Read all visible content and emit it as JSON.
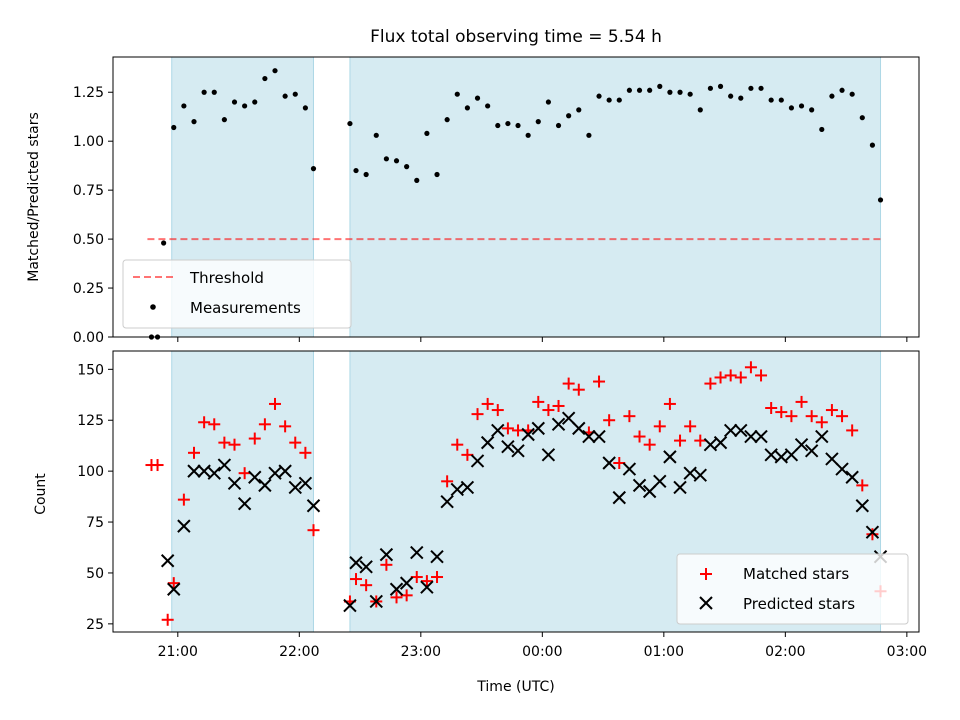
{
  "chart_data": [
    {
      "type": "scatter",
      "title": "Flux total observing time = 5.54 h",
      "ylabel": "Matched/Predicted stars",
      "xlim": [
        "20:28",
        "03:06"
      ],
      "ylim": [
        0,
        1.43
      ],
      "y_ticks": [
        "0.00",
        "0.25",
        "0.50",
        "0.75",
        "1.00",
        "1.25"
      ],
      "shaded_intervals": [
        [
          "20:57",
          "22:07"
        ],
        [
          "22:25",
          "02:47"
        ]
      ],
      "shade_color": "#add8e6",
      "legend_position": "lower-left",
      "series": [
        {
          "name": "Threshold",
          "style": "dashed-line",
          "color": "#ff0000",
          "x_range": [
            "20:45",
            "02:47"
          ],
          "y": 0.5
        },
        {
          "name": "Measurements",
          "style": "dot",
          "color": "#000000",
          "points": [
            [
              "20:47",
              0.0
            ],
            [
              "20:50",
              0.0
            ],
            [
              "20:53",
              0.48
            ],
            [
              "20:58",
              1.07
            ],
            [
              "21:03",
              1.18
            ],
            [
              "21:08",
              1.1
            ],
            [
              "21:13",
              1.25
            ],
            [
              "21:18",
              1.25
            ],
            [
              "21:23",
              1.11
            ],
            [
              "21:28",
              1.2
            ],
            [
              "21:33",
              1.18
            ],
            [
              "21:38",
              1.2
            ],
            [
              "21:43",
              1.32
            ],
            [
              "21:48",
              1.36
            ],
            [
              "21:53",
              1.23
            ],
            [
              "21:58",
              1.24
            ],
            [
              "22:03",
              1.17
            ],
            [
              "22:07",
              0.86
            ],
            [
              "22:25",
              1.09
            ],
            [
              "22:28",
              0.85
            ],
            [
              "22:33",
              0.83
            ],
            [
              "22:38",
              1.03
            ],
            [
              "22:43",
              0.91
            ],
            [
              "22:48",
              0.9
            ],
            [
              "22:53",
              0.87
            ],
            [
              "22:58",
              0.8
            ],
            [
              "23:03",
              1.04
            ],
            [
              "23:08",
              0.83
            ],
            [
              "23:13",
              1.11
            ],
            [
              "23:18",
              1.24
            ],
            [
              "23:23",
              1.17
            ],
            [
              "23:28",
              1.22
            ],
            [
              "23:33",
              1.18
            ],
            [
              "23:38",
              1.08
            ],
            [
              "23:43",
              1.09
            ],
            [
              "23:48",
              1.08
            ],
            [
              "23:53",
              1.03
            ],
            [
              "23:58",
              1.1
            ],
            [
              "00:03",
              1.2
            ],
            [
              "00:08",
              1.08
            ],
            [
              "00:13",
              1.13
            ],
            [
              "00:18",
              1.16
            ],
            [
              "00:23",
              1.03
            ],
            [
              "00:28",
              1.23
            ],
            [
              "00:33",
              1.21
            ],
            [
              "00:38",
              1.21
            ],
            [
              "00:43",
              1.26
            ],
            [
              "00:48",
              1.26
            ],
            [
              "00:53",
              1.26
            ],
            [
              "00:58",
              1.28
            ],
            [
              "01:03",
              1.25
            ],
            [
              "01:08",
              1.25
            ],
            [
              "01:13",
              1.24
            ],
            [
              "01:18",
              1.16
            ],
            [
              "01:23",
              1.27
            ],
            [
              "01:28",
              1.28
            ],
            [
              "01:33",
              1.23
            ],
            [
              "01:38",
              1.22
            ],
            [
              "01:43",
              1.27
            ],
            [
              "01:48",
              1.27
            ],
            [
              "01:53",
              1.21
            ],
            [
              "01:58",
              1.21
            ],
            [
              "02:03",
              1.17
            ],
            [
              "02:08",
              1.18
            ],
            [
              "02:13",
              1.16
            ],
            [
              "02:18",
              1.06
            ],
            [
              "02:23",
              1.23
            ],
            [
              "02:28",
              1.26
            ],
            [
              "02:33",
              1.24
            ],
            [
              "02:38",
              1.12
            ],
            [
              "02:43",
              0.98
            ],
            [
              "02:47",
              0.7
            ]
          ]
        }
      ]
    },
    {
      "type": "scatter",
      "ylabel": "Count",
      "xlabel": "Time (UTC)",
      "xlim": [
        "20:28",
        "03:06"
      ],
      "ylim": [
        21,
        159
      ],
      "x_ticks": [
        "21:00",
        "22:00",
        "23:00",
        "00:00",
        "01:00",
        "02:00",
        "03:00"
      ],
      "y_ticks": [
        "25",
        "50",
        "75",
        "100",
        "125",
        "150"
      ],
      "shaded_intervals": [
        [
          "20:57",
          "22:07"
        ],
        [
          "22:25",
          "02:47"
        ]
      ],
      "shade_color": "#add8e6",
      "legend_position": "lower-right",
      "series": [
        {
          "name": "Matched stars",
          "marker": "+",
          "color": "#ff0000",
          "points": [
            [
              "20:47",
              103
            ],
            [
              "20:50",
              103
            ],
            [
              "20:55",
              27
            ],
            [
              "20:58",
              45
            ],
            [
              "21:03",
              86
            ],
            [
              "21:08",
              109
            ],
            [
              "21:13",
              124
            ],
            [
              "21:18",
              123
            ],
            [
              "21:23",
              114
            ],
            [
              "21:28",
              113
            ],
            [
              "21:33",
              99
            ],
            [
              "21:38",
              116
            ],
            [
              "21:43",
              123
            ],
            [
              "21:48",
              133
            ],
            [
              "21:53",
              122
            ],
            [
              "21:58",
              114
            ],
            [
              "22:03",
              109
            ],
            [
              "22:07",
              71
            ],
            [
              "22:25",
              36
            ],
            [
              "22:28",
              47
            ],
            [
              "22:33",
              44
            ],
            [
              "22:38",
              36
            ],
            [
              "22:43",
              54
            ],
            [
              "22:48",
              38
            ],
            [
              "22:53",
              39
            ],
            [
              "22:58",
              48
            ],
            [
              "23:03",
              46
            ],
            [
              "23:08",
              48
            ],
            [
              "23:13",
              95
            ],
            [
              "23:18",
              113
            ],
            [
              "23:23",
              108
            ],
            [
              "23:28",
              128
            ],
            [
              "23:33",
              133
            ],
            [
              "23:38",
              130
            ],
            [
              "23:43",
              121
            ],
            [
              "23:48",
              120
            ],
            [
              "23:53",
              120
            ],
            [
              "23:58",
              134
            ],
            [
              "00:03",
              130
            ],
            [
              "00:08",
              132
            ],
            [
              "00:13",
              143
            ],
            [
              "00:18",
              140
            ],
            [
              "00:23",
              119
            ],
            [
              "00:28",
              144
            ],
            [
              "00:33",
              125
            ],
            [
              "00:38",
              104
            ],
            [
              "00:43",
              127
            ],
            [
              "00:48",
              117
            ],
            [
              "00:53",
              113
            ],
            [
              "00:58",
              122
            ],
            [
              "01:03",
              133
            ],
            [
              "01:08",
              115
            ],
            [
              "01:13",
              122
            ],
            [
              "01:18",
              115
            ],
            [
              "01:23",
              143
            ],
            [
              "01:28",
              146
            ],
            [
              "01:33",
              147
            ],
            [
              "01:38",
              146
            ],
            [
              "01:43",
              151
            ],
            [
              "01:48",
              147
            ],
            [
              "01:53",
              131
            ],
            [
              "01:58",
              129
            ],
            [
              "02:03",
              127
            ],
            [
              "02:08",
              134
            ],
            [
              "02:13",
              127
            ],
            [
              "02:18",
              124
            ],
            [
              "02:23",
              130
            ],
            [
              "02:28",
              127
            ],
            [
              "02:33",
              120
            ],
            [
              "02:38",
              93
            ],
            [
              "02:43",
              69
            ],
            [
              "02:47",
              41
            ]
          ]
        },
        {
          "name": "Predicted stars",
          "marker": "x",
          "color": "#000000",
          "points": [
            [
              "20:55",
              56
            ],
            [
              "20:58",
              42
            ],
            [
              "21:03",
              73
            ],
            [
              "21:08",
              100
            ],
            [
              "21:13",
              100
            ],
            [
              "21:18",
              99
            ],
            [
              "21:23",
              103
            ],
            [
              "21:28",
              94
            ],
            [
              "21:33",
              84
            ],
            [
              "21:38",
              97
            ],
            [
              "21:43",
              93
            ],
            [
              "21:48",
              99
            ],
            [
              "21:53",
              100
            ],
            [
              "21:58",
              92
            ],
            [
              "22:03",
              94
            ],
            [
              "22:07",
              83
            ],
            [
              "22:25",
              34
            ],
            [
              "22:28",
              55
            ],
            [
              "22:33",
              53
            ],
            [
              "22:38",
              36
            ],
            [
              "22:43",
              59
            ],
            [
              "22:48",
              42
            ],
            [
              "22:53",
              45
            ],
            [
              "22:58",
              60
            ],
            [
              "23:03",
              43
            ],
            [
              "23:08",
              58
            ],
            [
              "23:13",
              85
            ],
            [
              "23:18",
              91
            ],
            [
              "23:23",
              92
            ],
            [
              "23:28",
              105
            ],
            [
              "23:33",
              114
            ],
            [
              "23:38",
              120
            ],
            [
              "23:43",
              112
            ],
            [
              "23:48",
              110
            ],
            [
              "23:53",
              118
            ],
            [
              "23:58",
              121
            ],
            [
              "00:03",
              108
            ],
            [
              "00:08",
              123
            ],
            [
              "00:13",
              126
            ],
            [
              "00:18",
              121
            ],
            [
              "00:23",
              117
            ],
            [
              "00:28",
              117
            ],
            [
              "00:33",
              104
            ],
            [
              "00:38",
              87
            ],
            [
              "00:43",
              101
            ],
            [
              "00:48",
              93
            ],
            [
              "00:53",
              90
            ],
            [
              "00:58",
              95
            ],
            [
              "01:03",
              107
            ],
            [
              "01:08",
              92
            ],
            [
              "01:13",
              99
            ],
            [
              "01:18",
              98
            ],
            [
              "01:23",
              113
            ],
            [
              "01:28",
              114
            ],
            [
              "01:33",
              120
            ],
            [
              "01:38",
              120
            ],
            [
              "01:43",
              117
            ],
            [
              "01:48",
              117
            ],
            [
              "01:53",
              108
            ],
            [
              "01:58",
              107
            ],
            [
              "02:03",
              108
            ],
            [
              "02:08",
              113
            ],
            [
              "02:13",
              110
            ],
            [
              "02:18",
              117
            ],
            [
              "02:23",
              106
            ],
            [
              "02:28",
              101
            ],
            [
              "02:33",
              97
            ],
            [
              "02:38",
              83
            ],
            [
              "02:43",
              70
            ],
            [
              "02:47",
              58
            ]
          ]
        }
      ]
    }
  ]
}
